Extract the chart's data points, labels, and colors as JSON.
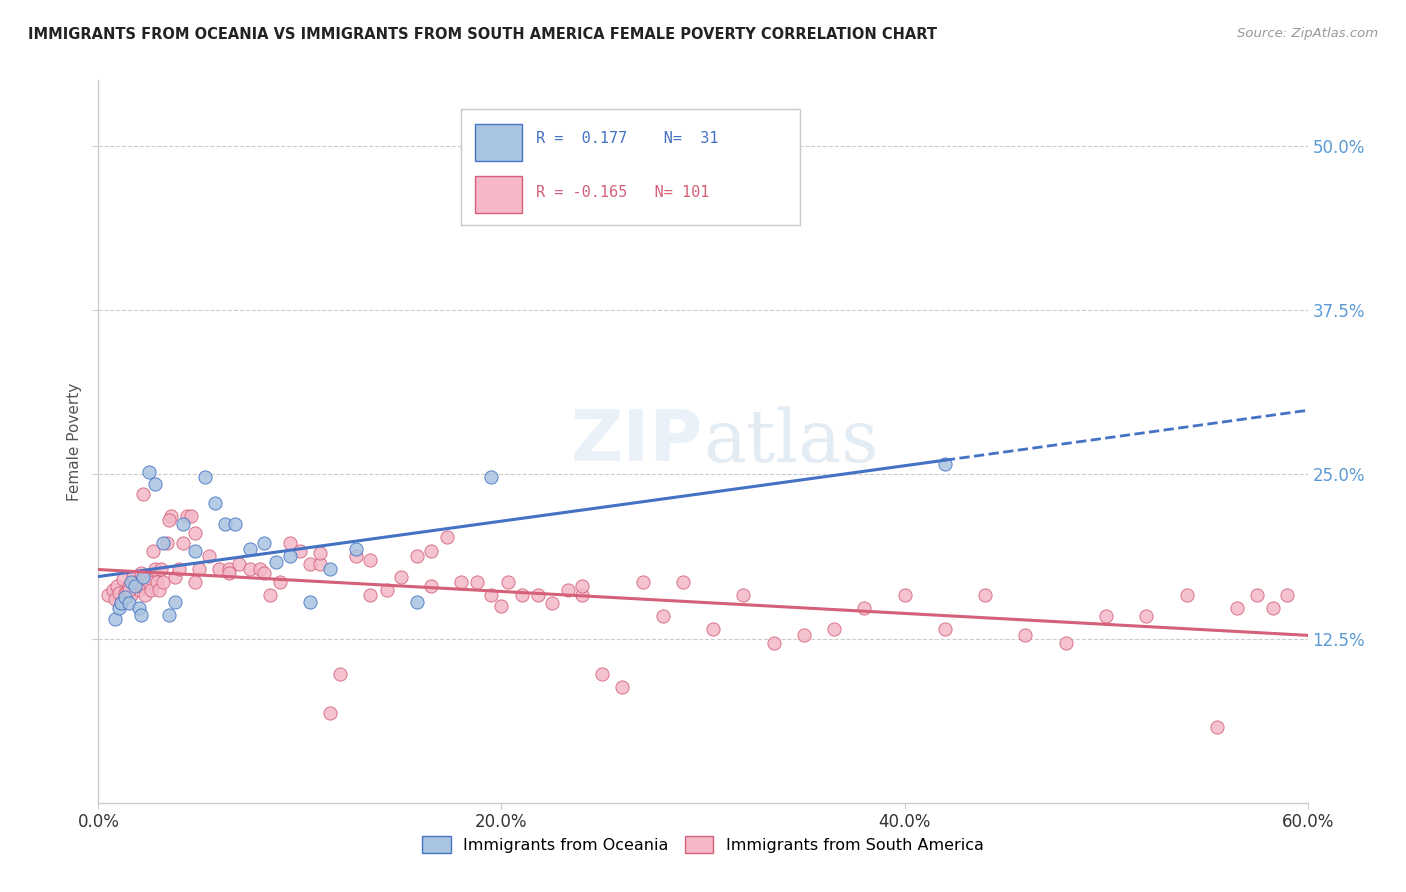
{
  "title": "IMMIGRANTS FROM OCEANIA VS IMMIGRANTS FROM SOUTH AMERICA FEMALE POVERTY CORRELATION CHART",
  "source": "Source: ZipAtlas.com",
  "ylabel": "Female Poverty",
  "xlim": [
    0.0,
    0.6
  ],
  "ylim": [
    0.0,
    0.55
  ],
  "ytick_values": [
    0.125,
    0.25,
    0.375,
    0.5
  ],
  "xtick_values": [
    0.0,
    0.2,
    0.4,
    0.6
  ],
  "oceania_color": "#a8c4e0",
  "oceania_line_color": "#4472c4",
  "sa_color": "#f4b8c8",
  "sa_line_color": "#d4607a",
  "oceania_R": 0.177,
  "oceania_N": 31,
  "sa_R": -0.165,
  "sa_N": 101,
  "oceania_x": [
    0.008,
    0.01,
    0.011,
    0.013,
    0.015,
    0.016,
    0.018,
    0.02,
    0.021,
    0.022,
    0.025,
    0.028,
    0.032,
    0.035,
    0.038,
    0.042,
    0.048,
    0.053,
    0.058,
    0.063,
    0.068,
    0.075,
    0.082,
    0.088,
    0.095,
    0.105,
    0.115,
    0.128,
    0.158,
    0.195,
    0.42
  ],
  "oceania_y": [
    0.14,
    0.148,
    0.152,
    0.157,
    0.152,
    0.168,
    0.165,
    0.148,
    0.143,
    0.172,
    0.252,
    0.243,
    0.198,
    0.143,
    0.153,
    0.212,
    0.192,
    0.248,
    0.228,
    0.212,
    0.212,
    0.193,
    0.198,
    0.183,
    0.188,
    0.153,
    0.178,
    0.193,
    0.153,
    0.248,
    0.258
  ],
  "sa_x": [
    0.005,
    0.007,
    0.008,
    0.009,
    0.01,
    0.011,
    0.012,
    0.013,
    0.014,
    0.015,
    0.016,
    0.017,
    0.018,
    0.019,
    0.02,
    0.021,
    0.022,
    0.023,
    0.024,
    0.025,
    0.026,
    0.027,
    0.028,
    0.029,
    0.03,
    0.031,
    0.032,
    0.034,
    0.036,
    0.038,
    0.04,
    0.042,
    0.044,
    0.046,
    0.048,
    0.05,
    0.055,
    0.06,
    0.065,
    0.07,
    0.075,
    0.08,
    0.085,
    0.09,
    0.095,
    0.1,
    0.105,
    0.11,
    0.115,
    0.12,
    0.128,
    0.135,
    0.143,
    0.15,
    0.158,
    0.165,
    0.173,
    0.18,
    0.188,
    0.195,
    0.203,
    0.21,
    0.218,
    0.225,
    0.233,
    0.24,
    0.25,
    0.26,
    0.27,
    0.28,
    0.29,
    0.305,
    0.32,
    0.335,
    0.35,
    0.365,
    0.38,
    0.4,
    0.42,
    0.44,
    0.46,
    0.48,
    0.5,
    0.52,
    0.54,
    0.555,
    0.565,
    0.575,
    0.583,
    0.59,
    0.015,
    0.022,
    0.035,
    0.048,
    0.065,
    0.082,
    0.11,
    0.135,
    0.165,
    0.2,
    0.24
  ],
  "sa_y": [
    0.158,
    0.162,
    0.155,
    0.165,
    0.16,
    0.152,
    0.17,
    0.16,
    0.162,
    0.165,
    0.158,
    0.172,
    0.168,
    0.165,
    0.162,
    0.175,
    0.165,
    0.158,
    0.172,
    0.168,
    0.162,
    0.192,
    0.178,
    0.168,
    0.162,
    0.178,
    0.168,
    0.198,
    0.218,
    0.172,
    0.178,
    0.198,
    0.218,
    0.218,
    0.168,
    0.178,
    0.188,
    0.178,
    0.178,
    0.182,
    0.178,
    0.178,
    0.158,
    0.168,
    0.198,
    0.192,
    0.182,
    0.182,
    0.068,
    0.098,
    0.188,
    0.158,
    0.162,
    0.172,
    0.188,
    0.192,
    0.202,
    0.168,
    0.168,
    0.158,
    0.168,
    0.158,
    0.158,
    0.152,
    0.162,
    0.158,
    0.098,
    0.088,
    0.168,
    0.142,
    0.168,
    0.132,
    0.158,
    0.122,
    0.128,
    0.132,
    0.148,
    0.158,
    0.132,
    0.158,
    0.128,
    0.122,
    0.142,
    0.142,
    0.158,
    0.058,
    0.148,
    0.158,
    0.148,
    0.158,
    0.162,
    0.235,
    0.215,
    0.205,
    0.175,
    0.175,
    0.19,
    0.185,
    0.165,
    0.15,
    0.165
  ]
}
